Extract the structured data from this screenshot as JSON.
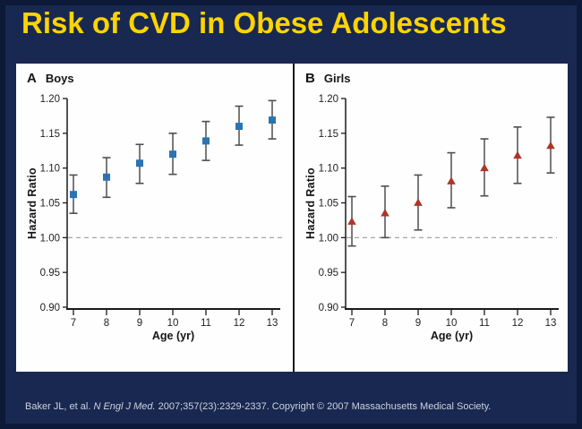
{
  "slide": {
    "title": "Risk of CVD in Obese Adolescents",
    "citation": {
      "prefix": "Baker JL, et al. ",
      "journal_italic": "N Engl J Med.",
      "suffix": " 2007;357(23):2329-2337. Copyright © 2007 Massachusetts Medical Society."
    }
  },
  "colors": {
    "background": "#182850",
    "frame": "#0C1A38",
    "title_text": "#FFD400",
    "citation_text": "#CBD2DF",
    "panel_background": "#FEFEFE",
    "boys_marker": "#2B74B2",
    "girls_marker": "#AE3529",
    "error_bar": "#4F4F4F",
    "axis": "#1A1A1A",
    "dashed_reference": "#9A9A9A"
  },
  "chart_data": [
    {
      "type": "scatter",
      "panel_label": "A",
      "panel_title": "Boys",
      "marker": "square",
      "marker_color": "#2B74B2",
      "xlabel": "Age (yr)",
      "ylabel": "Hazard Ratio",
      "x": [
        7,
        8,
        9,
        10,
        11,
        12,
        13
      ],
      "values": [
        1.062,
        1.087,
        1.107,
        1.12,
        1.139,
        1.16,
        1.169
      ],
      "ci_low": [
        1.035,
        1.058,
        1.078,
        1.091,
        1.111,
        1.133,
        1.142
      ],
      "ci_high": [
        1.09,
        1.115,
        1.134,
        1.15,
        1.167,
        1.189,
        1.197
      ],
      "ylim": [
        0.9,
        1.2
      ],
      "yticks": [
        0.9,
        0.95,
        1.0,
        1.05,
        1.1,
        1.15,
        1.2
      ],
      "reference_line": 1.0,
      "grid": false,
      "legend": "none"
    },
    {
      "type": "scatter",
      "panel_label": "B",
      "panel_title": "Girls",
      "marker": "triangle",
      "marker_color": "#AE3529",
      "xlabel": "Age (yr)",
      "ylabel": "Hazard Ratio",
      "x": [
        7,
        8,
        9,
        10,
        11,
        12,
        13
      ],
      "values": [
        1.023,
        1.035,
        1.05,
        1.081,
        1.1,
        1.118,
        1.132
      ],
      "ci_low": [
        0.988,
        1.0,
        1.011,
        1.043,
        1.06,
        1.078,
        1.093
      ],
      "ci_high": [
        1.059,
        1.074,
        1.09,
        1.122,
        1.142,
        1.159,
        1.173
      ],
      "ylim": [
        0.9,
        1.2
      ],
      "yticks": [
        0.9,
        0.95,
        1.0,
        1.05,
        1.1,
        1.15,
        1.2
      ],
      "reference_line": 1.0,
      "grid": false,
      "legend": "none"
    }
  ]
}
